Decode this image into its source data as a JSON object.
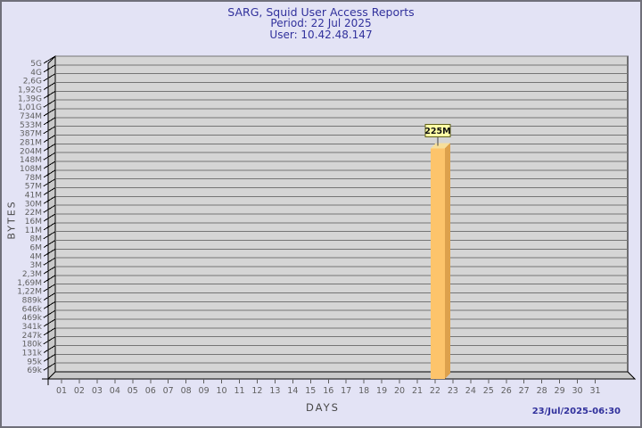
{
  "window": {
    "bg": "#E3E3F5",
    "border_color": "#70707A"
  },
  "header": {
    "title": "SARG, Squid User Access Reports",
    "period": "Period: 22 Jul 2025",
    "user": "User: 10.42.48.147",
    "text_color": "#31319C"
  },
  "footer": {
    "timestamp": "23/Jul/2025-06:30"
  },
  "chart_data": {
    "type": "bar",
    "title": "SARG, Squid User Access Reports",
    "subtitle": [
      "Period: 22 Jul 2025",
      "User: 10.42.48.147"
    ],
    "xlabel": "DAYS",
    "ylabel": "BYTES",
    "y_scale": "log",
    "ylim": [
      50000,
      5000000000
    ],
    "grid": true,
    "legend_position": "none",
    "y_tick_labels": [
      "5G",
      "4G",
      "2,6G",
      "1,92G",
      "1,39G",
      "1,01G",
      "734M",
      "533M",
      "387M",
      "281M",
      "204M",
      "148M",
      "108M",
      "78M",
      "57M",
      "41M",
      "30M",
      "22M",
      "16M",
      "11M",
      "8M",
      "6M",
      "4M",
      "3M",
      "2,3M",
      "1,69M",
      "1,22M",
      "889k",
      "646k",
      "469k",
      "341k",
      "247k",
      "180k",
      "131k",
      "95k",
      "69k"
    ],
    "categories": [
      "01",
      "02",
      "03",
      "04",
      "05",
      "06",
      "07",
      "08",
      "09",
      "10",
      "11",
      "12",
      "13",
      "14",
      "15",
      "16",
      "17",
      "18",
      "19",
      "20",
      "21",
      "22",
      "23",
      "24",
      "25",
      "26",
      "27",
      "28",
      "29",
      "30",
      "31"
    ],
    "values": [
      0,
      0,
      0,
      0,
      0,
      0,
      0,
      0,
      0,
      0,
      0,
      0,
      0,
      0,
      0,
      0,
      0,
      0,
      0,
      0,
      0,
      225000000,
      0,
      0,
      0,
      0,
      0,
      0,
      0,
      0,
      0
    ],
    "value_labels": [
      "",
      "",
      "",
      "",
      "",
      "",
      "",
      "",
      "",
      "",
      "",
      "",
      "",
      "",
      "",
      "",
      "",
      "",
      "",
      "",
      "",
      "225M",
      "",
      "",
      "",
      "",
      "",
      "",
      "",
      "",
      ""
    ],
    "colors": {
      "plot_bg": "#D5D5D5",
      "wall": "#C9C9C9",
      "gridline": "#757575",
      "edge": "#000000",
      "tick_text": "#5F5F5F",
      "bar_front": "#FDC46B",
      "bar_side": "#DDA14C",
      "bar_top": "#F6DE9B",
      "annotation_bg": "#FFFFA6",
      "annotation_border": "#606018",
      "annotation_text": "#111111"
    }
  }
}
